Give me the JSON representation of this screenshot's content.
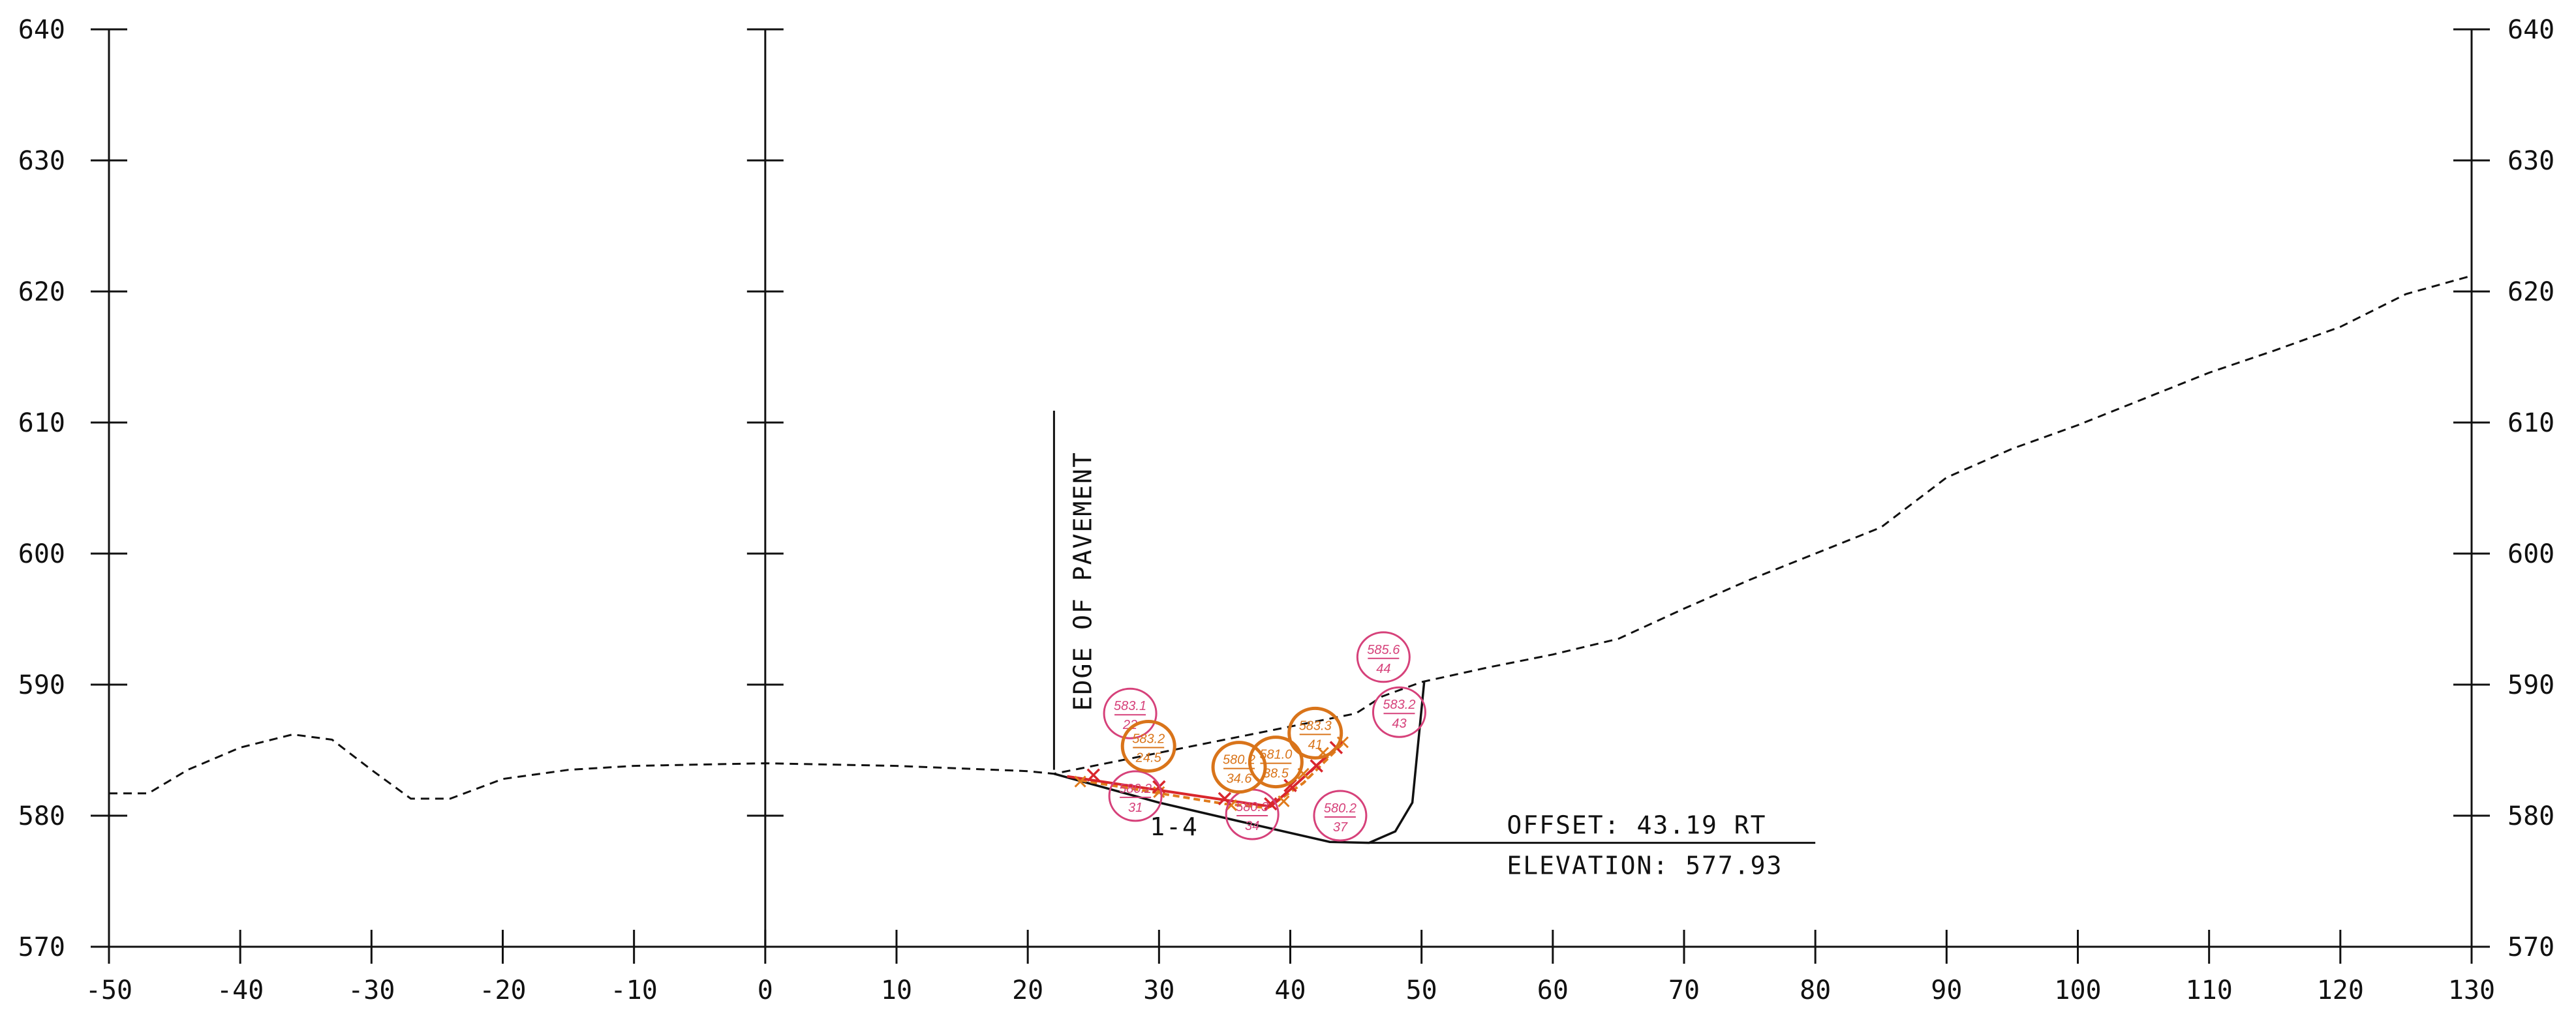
{
  "drawing": {
    "x_range": [
      -50,
      130
    ],
    "y_range": [
      570,
      640
    ],
    "x_ticks": [
      -50,
      -40,
      -30,
      -20,
      -10,
      0,
      10,
      20,
      30,
      40,
      50,
      60,
      70,
      80,
      90,
      100,
      110,
      120,
      130
    ],
    "x_tick_labels": [
      "-50",
      "-40",
      "-30",
      "-20",
      "-10",
      "0",
      "10",
      "20",
      "30",
      "40",
      "50",
      "60",
      "70",
      "80",
      "90",
      "100",
      "110",
      "120",
      "130"
    ],
    "y_ticks": [
      570,
      580,
      590,
      600,
      610,
      620,
      630,
      640
    ],
    "y_tick_labels": [
      "570",
      "580",
      "590",
      "600",
      "610",
      "620",
      "630",
      "640"
    ],
    "existing_ground_profile": [
      [
        -50,
        581.7
      ],
      [
        -47,
        581.7
      ],
      [
        -44,
        583.5
      ],
      [
        -40,
        585.2
      ],
      [
        -36,
        586.2
      ],
      [
        -33,
        585.8
      ],
      [
        -30,
        583.5
      ],
      [
        -27,
        581.3
      ],
      [
        -24,
        581.3
      ],
      [
        -20,
        582.8
      ],
      [
        -15,
        583.5
      ],
      [
        -10,
        583.8
      ],
      [
        0,
        584.0
      ],
      [
        10,
        583.8
      ],
      [
        20,
        583.4
      ],
      [
        22,
        583.2
      ],
      [
        45,
        587.8
      ],
      [
        47,
        589.1
      ],
      [
        50,
        590.2
      ],
      [
        55,
        591.3
      ],
      [
        60,
        592.3
      ],
      [
        65,
        593.5
      ],
      [
        70,
        595.8
      ],
      [
        75,
        598.0
      ],
      [
        80,
        600.0
      ],
      [
        85,
        602.0
      ],
      [
        90,
        605.8
      ],
      [
        95,
        608.0
      ],
      [
        100,
        609.8
      ],
      [
        105,
        611.8
      ],
      [
        110,
        613.8
      ],
      [
        115,
        615.5
      ],
      [
        120,
        617.3
      ],
      [
        125,
        619.8
      ],
      [
        130,
        621.2
      ]
    ],
    "proposed_section_profile": [
      [
        22,
        583.2
      ],
      [
        30,
        581.0
      ],
      [
        36,
        579.6
      ],
      [
        43,
        578.0
      ],
      [
        46,
        577.93
      ],
      [
        48,
        578.8
      ],
      [
        49.3,
        581.0
      ],
      [
        50.2,
        590.2
      ]
    ],
    "edge_of_pavement": {
      "x": 22,
      "y_bottom": 583.5,
      "y_top": 610.9
    },
    "survey_points_red": [
      [
        25,
        583.1
      ],
      [
        30,
        582.2
      ],
      [
        35,
        581.3
      ],
      [
        38.5,
        580.9
      ],
      [
        40,
        582.3
      ],
      [
        42,
        583.8
      ],
      [
        43.5,
        585.2
      ]
    ],
    "survey_points_orange": [
      [
        24,
        582.6
      ],
      [
        30,
        581.8
      ],
      [
        35.5,
        580.8
      ],
      [
        39.5,
        581.1
      ],
      [
        41,
        583.2
      ],
      [
        42.5,
        584.8
      ],
      [
        44,
        585.6
      ]
    ],
    "red_path": [
      [
        23,
        583.0
      ],
      [
        35,
        581.2
      ],
      [
        38.5,
        580.7
      ],
      [
        40,
        582.0
      ],
      [
        43.5,
        585.2
      ]
    ],
    "orange_path": [
      [
        24,
        582.7
      ],
      [
        35,
        580.9
      ],
      [
        38.3,
        580.6
      ],
      [
        41,
        582.5
      ],
      [
        44,
        585.5
      ]
    ],
    "pink_bubbles": [
      {
        "x": 27.8,
        "y": 587.8,
        "top": "583.1",
        "bottom": "22"
      },
      {
        "x": 28.2,
        "y": 581.5,
        "top": "580.2",
        "bottom": "31"
      },
      {
        "x": 37.1,
        "y": 580.1,
        "top": "580.3",
        "bottom": "34"
      },
      {
        "x": 43.8,
        "y": 580.0,
        "top": "580.2",
        "bottom": "37"
      },
      {
        "x": 47.1,
        "y": 592.1,
        "top": "585.6",
        "bottom": "44"
      },
      {
        "x": 48.3,
        "y": 587.9,
        "top": "583.2",
        "bottom": "43"
      }
    ],
    "orange_bubbles": [
      {
        "x": 29.2,
        "y": 585.3,
        "top": "583.2",
        "bottom": "24.5"
      },
      {
        "x": 36.1,
        "y": 583.7,
        "top": "580.2",
        "bottom": "34.6"
      },
      {
        "x": 38.9,
        "y": 584.1,
        "top": "581.0",
        "bottom": "38.5"
      },
      {
        "x": 41.9,
        "y": 586.3,
        "top": "583.3",
        "bottom": "41"
      }
    ],
    "colors": {
      "ink": "#111111",
      "survey_red": "#d9262c",
      "survey_orange": "#e07b1c",
      "bubble_pink": "#d6417a",
      "bubble_orange": "#d9741a"
    }
  },
  "labels": {
    "edge_of_pavement": "EDGE OF PAVEMENT",
    "section_id": "1-4",
    "offset": "OFFSET: 43.19 RT",
    "elevation": "ELEVATION: 577.93"
  }
}
